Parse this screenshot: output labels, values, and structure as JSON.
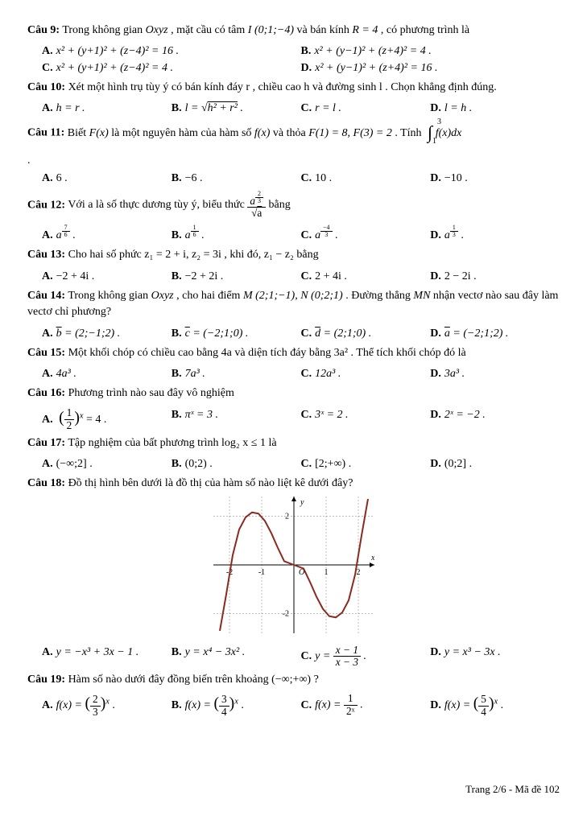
{
  "q9": {
    "label": "Câu 9:",
    "text_before": " Trong không gian ",
    "space": "Oxyz",
    "text_mid1": " , mặt cầu có tâm ",
    "center": "I (0;1;−4)",
    "text_mid2": " và bán kính ",
    "radius": "R = 4",
    "text_after": " , có phương trình là",
    "optA": "x² + (y+1)² + (z−4)² = 16 .",
    "optB": "x² + (y−1)² + (z+4)² = 4 .",
    "optC": "x² + (y+1)² + (z−4)² = 4 .",
    "optD": "x² + (y−1)² + (z+4)² = 16 ."
  },
  "q10": {
    "label": "Câu 10:",
    "text": " Xét một hình trụ tùy ý có bán kính đáy r , chiều cao h và đường sinh l . Chọn khẳng định đúng.",
    "optA": "h = r .",
    "optB_pre": "l = ",
    "optB_sqrt": "h² + r²",
    "optB_post": " .",
    "optC": "r = l .",
    "optD": "l = h ."
  },
  "q11": {
    "label": "Câu 11:",
    "text_before": " Biết ",
    "F": "F(x)",
    "text_mid1": " là một nguyên hàm của hàm số ",
    "f": "f(x)",
    "text_mid2": " và thỏa ",
    "cond": "F(1) = 8, F(3) = 2",
    "text_mid3": " . Tính ",
    "int_top": "3",
    "int_bot": "1",
    "int_body": "f(x)dx",
    "optA": "6 .",
    "optB": "−6 .",
    "optC": "10 .",
    "optD": "−10 ."
  },
  "q12": {
    "label": "Câu 12:",
    "text_before": " Với a là số thực dương tùy ý, biểu thức ",
    "frac_num_base": "a",
    "frac_num_exp_num": "2",
    "frac_num_exp_den": "3",
    "frac_den_sqrt": "a",
    "text_after": " bằng",
    "optA_base": "a",
    "optA_exp_num": "7",
    "optA_exp_den": "6",
    "optB_base": "a",
    "optB_exp_num": "1",
    "optB_exp_den": "6",
    "optC_base": "a",
    "optC_exp_num": "−4",
    "optC_exp_den": "3",
    "optD_base": "a",
    "optD_exp_num": "1",
    "optD_exp_den": "3"
  },
  "q13": {
    "label": "Câu 13:",
    "text": " Cho hai số phức z₁ = 2 + i, z₂ = 3i , khi đó, z₁ − z₂ bằng",
    "optA": "−2 + 4i .",
    "optB": "−2 + 2i .",
    "optC": "2 + 4i .",
    "optD": "2 − 2i ."
  },
  "q14": {
    "label": "Câu 14:",
    "text_before": " Trong không gian ",
    "space": "Oxyz",
    "text_mid": " , cho hai điểm ",
    "points": "M (2;1;−1), N (0;2;1)",
    "text_mid2": " . Đường thẳng ",
    "line": "MN",
    "text_after": " nhận vectơ nào sau đây làm vectơ chỉ phương?",
    "optA_pre": "b",
    "optA_val": " = (2;−1;2) .",
    "optB_pre": "c",
    "optB_val": " = (−2;1;0) .",
    "optC_pre": "d",
    "optC_val": " = (2;1;0) .",
    "optD_pre": "a",
    "optD_val": " = (−2;1;2) ."
  },
  "q15": {
    "label": "Câu 15:",
    "text": " Một khối chóp có chiều cao bằng 4a và diện tích đáy bằng 3a² . Thể tích khối chóp đó là",
    "optA": "4a³ .",
    "optB": "7a³ .",
    "optC": "12a³ .",
    "optD": "3a³ ."
  },
  "q16": {
    "label": "Câu 16:",
    "text": " Phương trình nào sau đây vô nghiệm",
    "optA_num": "1",
    "optA_den": "2",
    "optA_exp": "x",
    "optA_rhs": " = 4 .",
    "optB": "πˣ = 3 .",
    "optC": "3ˣ = 2 .",
    "optD": "2ˣ = −2 ."
  },
  "q17": {
    "label": "Câu 17:",
    "text": " Tập nghiệm của bất phương trình log₂ x ≤ 1 là",
    "optA": "(−∞;2] .",
    "optB": "(0;2) .",
    "optC": "[2;+∞) .",
    "optD": "(0;2] ."
  },
  "q18": {
    "label": "Câu 18:",
    "text": " Đồ thị hình bên dưới là đồ thị của hàm số nào liệt kê dưới đây?",
    "graph": {
      "xlim": [
        -2.5,
        2.5
      ],
      "ylim": [
        -2.8,
        2.8
      ],
      "xticks": [
        -2,
        -1,
        1,
        2
      ],
      "yticks": [
        -2,
        2
      ],
      "curve_color": "#8b2a1f",
      "background": "#ffffff",
      "axis_color": "#000000",
      "y_label": "y",
      "x_label": "x",
      "origin": "O",
      "grid_lines": {
        "x": [
          -2,
          -1,
          1,
          2
        ],
        "y": [
          -2,
          2
        ]
      },
      "curve_points": [
        [
          -2.3,
          -2.7
        ],
        [
          -2.1,
          -1.2
        ],
        [
          -1.9,
          0.4
        ],
        [
          -1.7,
          1.45
        ],
        [
          -1.5,
          1.95
        ],
        [
          -1.3,
          2.15
        ],
        [
          -1.1,
          2.1
        ],
        [
          -0.9,
          1.8
        ],
        [
          -0.7,
          1.3
        ],
        [
          -0.5,
          0.7
        ],
        [
          -0.3,
          0.15
        ],
        [
          0,
          -0.0
        ],
        [
          0.3,
          -0.15
        ],
        [
          0.5,
          -0.7
        ],
        [
          0.7,
          -1.3
        ],
        [
          0.9,
          -1.8
        ],
        [
          1.1,
          -2.1
        ],
        [
          1.3,
          -2.15
        ],
        [
          1.5,
          -1.95
        ],
        [
          1.7,
          -1.45
        ],
        [
          1.9,
          -0.4
        ],
        [
          2.1,
          1.2
        ],
        [
          2.3,
          2.7
        ]
      ]
    },
    "optA": "y = −x³ + 3x − 1 .",
    "optB": "y = x⁴ − 3x² .",
    "optC_pre": "y = ",
    "optC_num": "x − 1",
    "optC_den": "x − 3",
    "optC_post": " .",
    "optD": "y = x³ − 3x ."
  },
  "q19": {
    "label": "Câu 19:",
    "text": " Hàm số nào dưới đây đồng biến trên khoảng (−∞;+∞) ?",
    "optA_num": "2",
    "optA_den": "3",
    "optB_num": "3",
    "optB_den": "4",
    "optC_den": "2ˣ",
    "optD_num": "5",
    "optD_den": "4",
    "fx": "f(x) = ",
    "exp": "x",
    "one": "1"
  },
  "footer": "Trang 2/6 - Mã đề 102"
}
